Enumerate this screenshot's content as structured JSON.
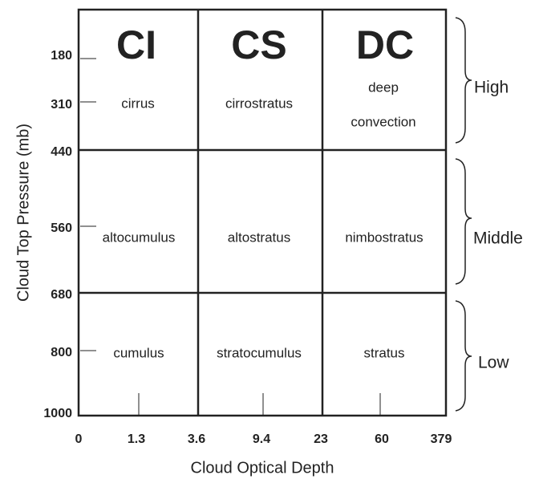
{
  "y_axis": {
    "label": "Cloud Top Pressure (mb)",
    "ticks": [
      180,
      310,
      440,
      560,
      680,
      800,
      1000
    ]
  },
  "x_axis": {
    "label": "Cloud Optical Depth",
    "ticks": [
      0,
      1.3,
      3.6,
      9.4,
      23,
      60,
      379
    ]
  },
  "cells": [
    [
      {
        "abbr": "CI",
        "name": "cirrus"
      },
      {
        "abbr": "CS",
        "name": "cirrostratus"
      },
      {
        "abbr": "DC",
        "name": [
          "deep",
          "convection"
        ]
      }
    ],
    [
      {
        "name": "altocumulus"
      },
      {
        "name": "altostratus"
      },
      {
        "name": "nimbostratus"
      }
    ],
    [
      {
        "name": "cumulus"
      },
      {
        "name": "stratocumulus"
      },
      {
        "name": "stratus"
      }
    ]
  ],
  "groups": [
    "High",
    "Middle",
    "Low"
  ]
}
